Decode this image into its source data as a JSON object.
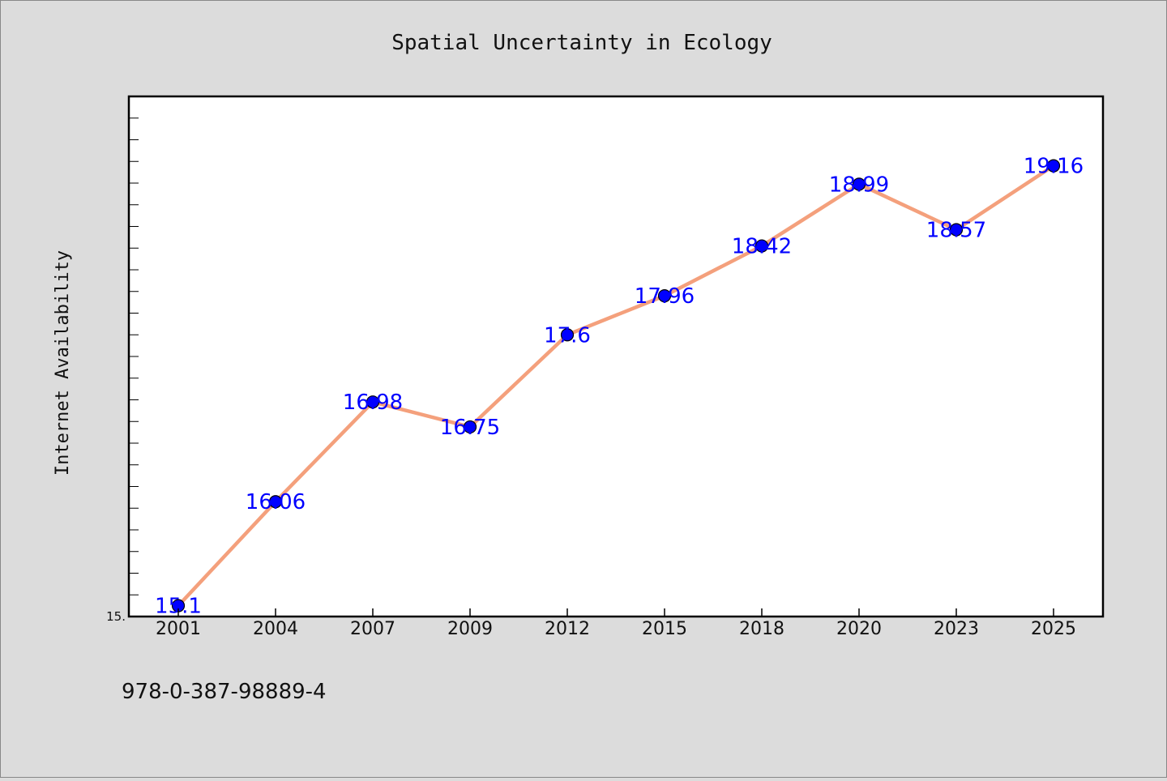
{
  "chart_data": {
    "type": "line",
    "title": "Spatial Uncertainty in Ecology",
    "xlabel": "",
    "ylabel": "Internet Availability",
    "categories": [
      "2001",
      "2004",
      "2007",
      "2009",
      "2012",
      "2015",
      "2018",
      "2020",
      "2023",
      "2025"
    ],
    "series": [
      {
        "values": [
          15.1,
          16.06,
          16.98,
          16.75,
          17.6,
          17.96,
          18.42,
          18.99,
          18.57,
          19.16
        ],
        "labels": [
          "15.1",
          "16.06",
          "16.98",
          "16.75",
          "17.6",
          "17.96",
          "18.42",
          "18.99",
          "18.57",
          "19.16"
        ]
      }
    ],
    "ylim": [
      15.0,
      19.8
    ],
    "yticks": [
      {
        "value": 15.0,
        "label": "15."
      }
    ],
    "grid": false,
    "legend": "none",
    "colors": {
      "line": "#f4a07c",
      "marker": "#0000ff",
      "data_label": "#0000ff",
      "plot_bg": "#ffffff",
      "figure_bg": "#dcdcdc"
    }
  },
  "footnote": "978-0-387-98889-4"
}
